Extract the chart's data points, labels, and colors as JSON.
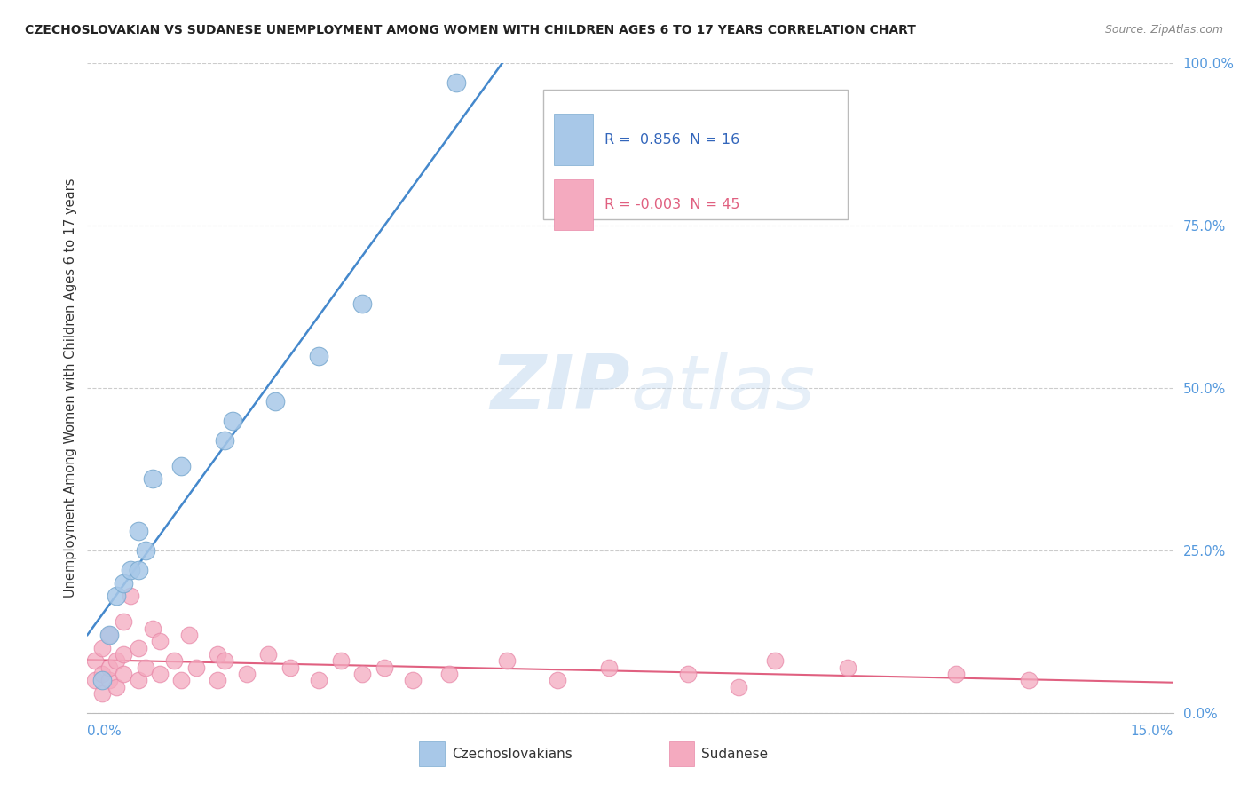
{
  "title": "CZECHOSLOVAKIAN VS SUDANESE UNEMPLOYMENT AMONG WOMEN WITH CHILDREN AGES 6 TO 17 YEARS CORRELATION CHART",
  "source": "Source: ZipAtlas.com",
  "ylabel": "Unemployment Among Women with Children Ages 6 to 17 years",
  "czecho_color": "#A8C8E8",
  "czecho_edge_color": "#7AAAD0",
  "sudanese_color": "#F4AABF",
  "sudanese_edge_color": "#E888A8",
  "czecho_line_color": "#4488CC",
  "sudanese_line_color": "#E06080",
  "background_color": "#FFFFFF",
  "grid_color": "#CCCCCC",
  "ytick_color": "#5599DD",
  "xtick_color": "#5599DD",
  "watermark_color": "#D0E4F4",
  "legend_text_czecho_color": "#3366BB",
  "legend_text_sudanese_color": "#E06080",
  "czecho_x": [
    0.002,
    0.003,
    0.004,
    0.005,
    0.006,
    0.007,
    0.007,
    0.008,
    0.009,
    0.013,
    0.019,
    0.02,
    0.026,
    0.032,
    0.038,
    0.051
  ],
  "czecho_y": [
    0.05,
    0.12,
    0.18,
    0.2,
    0.22,
    0.22,
    0.28,
    0.25,
    0.36,
    0.38,
    0.42,
    0.45,
    0.48,
    0.55,
    0.63,
    0.97
  ],
  "sudanese_x": [
    0.001,
    0.001,
    0.002,
    0.002,
    0.002,
    0.003,
    0.003,
    0.003,
    0.004,
    0.004,
    0.005,
    0.005,
    0.005,
    0.006,
    0.007,
    0.007,
    0.008,
    0.009,
    0.01,
    0.01,
    0.012,
    0.013,
    0.014,
    0.015,
    0.018,
    0.018,
    0.019,
    0.022,
    0.025,
    0.028,
    0.032,
    0.035,
    0.038,
    0.041,
    0.045,
    0.05,
    0.058,
    0.065,
    0.072,
    0.083,
    0.09,
    0.095,
    0.105,
    0.12,
    0.13
  ],
  "sudanese_y": [
    0.05,
    0.08,
    0.03,
    0.06,
    0.1,
    0.05,
    0.07,
    0.12,
    0.04,
    0.08,
    0.06,
    0.09,
    0.14,
    0.18,
    0.05,
    0.1,
    0.07,
    0.13,
    0.06,
    0.11,
    0.08,
    0.05,
    0.12,
    0.07,
    0.09,
    0.05,
    0.08,
    0.06,
    0.09,
    0.07,
    0.05,
    0.08,
    0.06,
    0.07,
    0.05,
    0.06,
    0.08,
    0.05,
    0.07,
    0.06,
    0.04,
    0.08,
    0.07,
    0.06,
    0.05
  ],
  "xmax": 0.15,
  "ymax": 1.0,
  "yticks": [
    0.0,
    0.25,
    0.5,
    0.75,
    1.0
  ],
  "ytick_labels": [
    "0.0%",
    "25.0%",
    "50.0%",
    "75.0%",
    "100.0%"
  ],
  "xtick_left": "0.0%",
  "xtick_right": "15.0%"
}
